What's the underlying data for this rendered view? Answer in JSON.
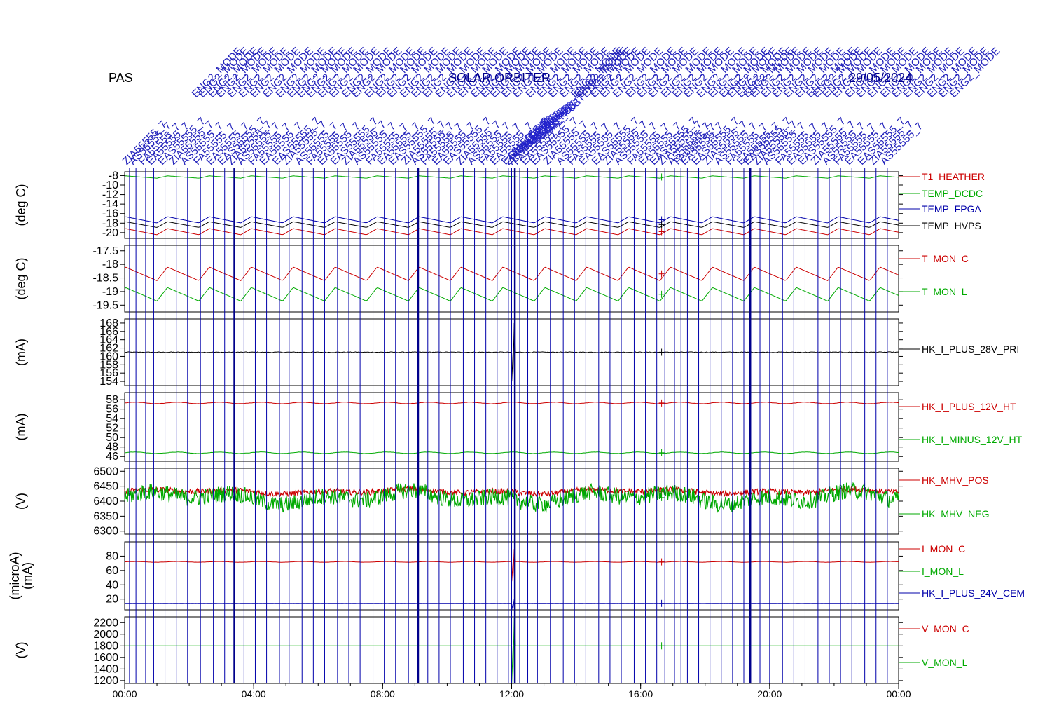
{
  "instrument": "PAS",
  "colors": {
    "red": "#cc0000",
    "green": "#00aa00",
    "blue": "#0000aa",
    "black": "#000000",
    "event_line": "#00008b"
  },
  "event_annotations": {
    "prefix_rows": [
      "ZIA",
      "AS",
      "FA",
      "EA",
      "EAS"
    ],
    "repeated_label": "ENG2_MODE",
    "center_text": "SOLAR ORBITER",
    "right_text": "29/05/2024",
    "cluster_text": "CAL_POST"
  },
  "chart_data": {
    "type": "line",
    "time_axis": {
      "range": [
        "00:00",
        "24:00"
      ],
      "tick_labels": [
        "00:00",
        "04:00",
        "08:00",
        "12:00",
        "16:00",
        "20:00",
        "00:00"
      ]
    },
    "events": {
      "thick_lines_hours": [
        3.4,
        9.1,
        12.1,
        19.4
      ],
      "thin_lines_hours": [
        0.15,
        0.35,
        0.65,
        0.9,
        1.25,
        1.6,
        1.95,
        2.35,
        2.75,
        3.1,
        3.7,
        4.05,
        4.4,
        4.8,
        5.1,
        5.5,
        5.85,
        6.2,
        6.6,
        6.95,
        7.3,
        7.7,
        8.05,
        8.4,
        8.8,
        9.4,
        9.75,
        10.1,
        10.5,
        10.85,
        11.2,
        11.55,
        11.9,
        12.0,
        12.25,
        12.5,
        12.8,
        13.2,
        13.6,
        13.95,
        14.3,
        14.7,
        15.05,
        15.4,
        15.8,
        16.15,
        16.5,
        16.75,
        17.05,
        17.25,
        17.45,
        17.8,
        18.15,
        18.5,
        18.85,
        19.2,
        19.7,
        20.0,
        20.4,
        20.75,
        21.1,
        21.5,
        21.85,
        22.2,
        22.55,
        22.95,
        23.3,
        23.65
      ]
    },
    "panels": [
      {
        "id": "temps",
        "ylabel": "(deg C)",
        "ylim": [
          -21.2,
          -7.2
        ],
        "yticks": [
          -8,
          -10,
          -12,
          -14,
          -16,
          -18,
          -20
        ],
        "series": [
          {
            "name": "T1_HEATHER",
            "color": "#cc0000",
            "base": -19.8,
            "amp": 1.3,
            "shape": "saw",
            "period": 1.3
          },
          {
            "name": "TEMP_DCDC",
            "color": "#00aa00",
            "base": -8.3,
            "amp": 0.5,
            "shape": "saw",
            "period": 1.3
          },
          {
            "name": "TEMP_FPGA",
            "color": "#0000aa",
            "base": -17.3,
            "amp": 1.3,
            "shape": "saw",
            "period": 1.3
          },
          {
            "name": "TEMP_HVPS",
            "color": "#000000",
            "base": -18.3,
            "amp": 1.2,
            "shape": "saw",
            "period": 1.3
          }
        ]
      },
      {
        "id": "tmon",
        "ylabel": "(deg C)",
        "ylim": [
          -19.75,
          -17.3
        ],
        "yticks": [
          -17.5,
          -18.0,
          -18.5,
          -19.0,
          -19.5
        ],
        "series": [
          {
            "name": "T_MON_C",
            "color": "#cc0000",
            "base": -18.35,
            "amp": 0.5,
            "shape": "saw",
            "period": 1.3
          },
          {
            "name": "T_MON_L",
            "color": "#00aa00",
            "base": -19.1,
            "amp": 0.5,
            "shape": "saw",
            "period": 1.3
          }
        ]
      },
      {
        "id": "i28",
        "ylabel": "(mA)",
        "ylim": [
          153.0,
          169.0
        ],
        "yticks": [
          168,
          166,
          164,
          162,
          160,
          158,
          156,
          154
        ],
        "series": [
          {
            "name": "HK_I_PLUS_28V_PRI",
            "color": "#000000",
            "base": 161.0,
            "amp": 0.1,
            "shape": "flat",
            "spike": {
              "at": 12.05,
              "to": 154.0,
              "then": 168.0
            }
          }
        ]
      },
      {
        "id": "i12",
        "ylabel": "(mA)",
        "ylim": [
          45.0,
          59.5
        ],
        "yticks": [
          58,
          56,
          54,
          52,
          50,
          48,
          46
        ],
        "series": [
          {
            "name": "HK_I_PLUS_12V_HT",
            "color": "#cc0000",
            "base": 57.3,
            "amp": 0.15,
            "shape": "wave",
            "period": 1.3
          },
          {
            "name": "HK_I_MINUS_12V_HT",
            "color": "#00aa00",
            "base": 46.8,
            "amp": 0.15,
            "shape": "wave",
            "period": 1.3
          }
        ]
      },
      {
        "id": "mhv",
        "ylabel": "(V)",
        "ylim": [
          6290,
          6510
        ],
        "yticks": [
          6500,
          6450,
          6400,
          6350,
          6300
        ],
        "series": [
          {
            "name": "HK_MHV_POS",
            "color": "#cc0000",
            "base": 6432,
            "amp": 12,
            "shape": "noise"
          },
          {
            "name": "HK_MHV_NEG",
            "color": "#00aa00",
            "base": 6412,
            "amp": 35,
            "shape": "noise"
          }
        ]
      },
      {
        "id": "imon",
        "ylabel": "(microA)\n(mA)",
        "ylim": [
          5,
          100
        ],
        "yticks": [
          80,
          60,
          40,
          20
        ],
        "series": [
          {
            "name": "I_MON_C",
            "color": "#cc0000",
            "base": 72,
            "amp": 0.5,
            "shape": "wave",
            "period": 1.3,
            "spike": {
              "at": 12.05,
              "to": 45,
              "then": 90
            }
          },
          {
            "name": "I_MON_L",
            "color": "#00aa00",
            "base": null
          },
          {
            "name": "HK_I_PLUS_24V_CEM",
            "color": "#0000aa",
            "base": 14,
            "amp": 0.1,
            "shape": "flat",
            "spike": {
              "at": 12.05,
              "to": 5,
              "then": 20
            }
          }
        ]
      },
      {
        "id": "vmon",
        "ylabel": "(V)",
        "ylim": [
          1150,
          2300
        ],
        "yticks": [
          2200,
          2000,
          1800,
          1600,
          1400,
          1200
        ],
        "series": [
          {
            "name": "V_MON_C",
            "color": "#cc0000",
            "base": null
          },
          {
            "name": "V_MON_L",
            "color": "#00aa00",
            "base": 1800,
            "amp": 0.5,
            "shape": "flat",
            "spike": {
              "at": 12.05,
              "to": 1160,
              "then": 2280
            }
          }
        ]
      }
    ]
  }
}
